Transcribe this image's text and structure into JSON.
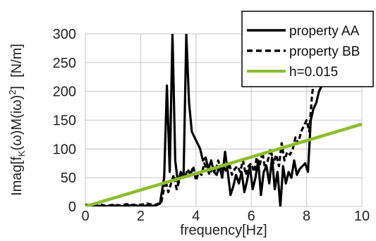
{
  "chart_data": {
    "type": "line",
    "title": "",
    "xlabel": "frequency[Hz]",
    "ylabel_parts": {
      "a": "Imag[f",
      "b": "K",
      "c": "(ω)M(iω)",
      "d": "2",
      "e": "]",
      "unit": "[N/m]"
    },
    "xlim": [
      0,
      10
    ],
    "ylim": [
      0,
      300
    ],
    "x_ticks": [
      "0",
      "2",
      "4",
      "6",
      "8",
      "10"
    ],
    "y_ticks": [
      "0",
      "50",
      "100",
      "150",
      "200",
      "250",
      "300"
    ],
    "grid": true,
    "legend_position": "top-right",
    "series": [
      {
        "name": "property AA",
        "color": "#000000",
        "style": "solid",
        "x": [
          0,
          0.25,
          0.5,
          0.75,
          1.0,
          1.25,
          1.5,
          1.75,
          2.0,
          2.25,
          2.5,
          2.7,
          2.85,
          2.95,
          3.05,
          3.15,
          3.25,
          3.35,
          3.45,
          3.55,
          3.65,
          3.75,
          3.85,
          3.95,
          4.05,
          4.15,
          4.25,
          4.35,
          4.45,
          4.55,
          4.65,
          4.75,
          4.85,
          4.95,
          5.05,
          5.15,
          5.25,
          5.35,
          5.45,
          5.55,
          5.65,
          5.75,
          5.85,
          5.95,
          6.05,
          6.15,
          6.25,
          6.35,
          6.45,
          6.55,
          6.65,
          6.75,
          6.85,
          6.95,
          7.05,
          7.15,
          7.25,
          7.35,
          7.45,
          7.55,
          7.65,
          7.75,
          7.85,
          7.95,
          8.05,
          8.15,
          8.25,
          8.35,
          8.45,
          8.55
        ],
        "y": [
          0,
          0,
          1,
          0,
          2,
          0,
          1,
          3,
          0,
          2,
          1,
          5,
          50,
          210,
          60,
          300,
          80,
          40,
          60,
          50,
          300,
          180,
          130,
          120,
          110,
          100,
          80,
          85,
          65,
          80,
          60,
          55,
          70,
          50,
          95,
          60,
          20,
          35,
          55,
          40,
          60,
          25,
          45,
          70,
          30,
          50,
          80,
          20,
          60,
          70,
          40,
          85,
          30,
          60,
          0,
          70,
          40,
          60,
          50,
          80,
          55,
          65,
          70,
          75,
          60,
          150,
          170,
          180,
          200,
          210
        ]
      },
      {
        "name": "property BB",
        "color": "#000000",
        "style": "dashed",
        "x": [
          0,
          0.25,
          0.5,
          0.75,
          1.0,
          1.25,
          1.5,
          1.75,
          2.0,
          2.25,
          2.5,
          2.75,
          2.9,
          3.0,
          3.1,
          3.2,
          3.3,
          3.4,
          3.5,
          3.6,
          3.7,
          3.8,
          3.9,
          4.0,
          4.1,
          4.2,
          4.3,
          4.4,
          4.5,
          4.6,
          4.7,
          4.8,
          4.9,
          5.0,
          5.1,
          5.2,
          5.3,
          5.4,
          5.5,
          5.6,
          5.7,
          5.8,
          5.9,
          6.0,
          6.1,
          6.2,
          6.3,
          6.4,
          6.5,
          6.6,
          6.7,
          6.8,
          6.9,
          7.0,
          7.1,
          7.2,
          7.3,
          7.4,
          7.5,
          7.6,
          7.7,
          7.8,
          7.9,
          8.0,
          8.1,
          8.2,
          8.3,
          8.4,
          8.5,
          8.6
        ],
        "y": [
          3,
          2,
          4,
          1,
          3,
          2,
          4,
          2,
          3,
          5,
          2,
          8,
          45,
          25,
          40,
          55,
          30,
          45,
          60,
          50,
          65,
          55,
          70,
          45,
          60,
          55,
          75,
          65,
          55,
          70,
          60,
          80,
          65,
          70,
          60,
          75,
          55,
          65,
          70,
          60,
          80,
          55,
          70,
          75,
          60,
          85,
          70,
          95,
          65,
          80,
          100,
          75,
          90,
          70,
          110,
          80,
          95,
          90,
          100,
          120,
          110,
          130,
          140,
          150,
          130,
          195,
          230,
          275,
          300,
          300
        ]
      },
      {
        "name": "h=0.015",
        "color": "#8cbd2e",
        "style": "solid",
        "x": [
          0,
          10
        ],
        "y": [
          0,
          143
        ]
      }
    ]
  }
}
